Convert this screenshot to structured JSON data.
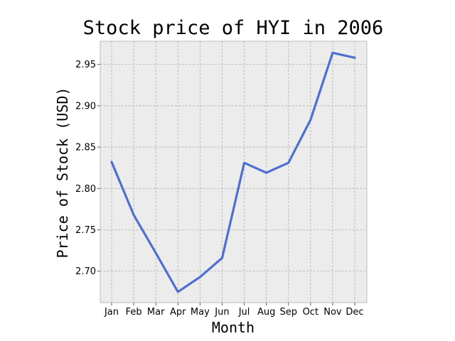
{
  "chart_data": {
    "type": "line",
    "title": "Stock price of HYI in 2006",
    "xlabel": "Month",
    "ylabel": "Price of Stock (USD)",
    "categories": [
      "Jan",
      "Feb",
      "Mar",
      "Apr",
      "May",
      "Jun",
      "Jul",
      "Aug",
      "Sep",
      "Oct",
      "Nov",
      "Dec"
    ],
    "series": [
      {
        "values": [
          2.832,
          2.768,
          2.722,
          2.675,
          2.693,
          2.716,
          2.831,
          2.819,
          2.831,
          2.883,
          2.964,
          2.958
        ]
      }
    ],
    "ylim": [
      2.662,
      2.978
    ],
    "yticks": [
      "2.70",
      "2.75",
      "2.80",
      "2.85",
      "2.90",
      "2.95"
    ],
    "ytick_values": [
      2.7,
      2.75,
      2.8,
      2.85,
      2.9,
      2.95
    ],
    "grid": true,
    "colors": {
      "line": "#4f6fd0",
      "plot_background": "#ececec",
      "figure_background": "#ffffff",
      "axes_edge": "#bcbcbc"
    }
  }
}
